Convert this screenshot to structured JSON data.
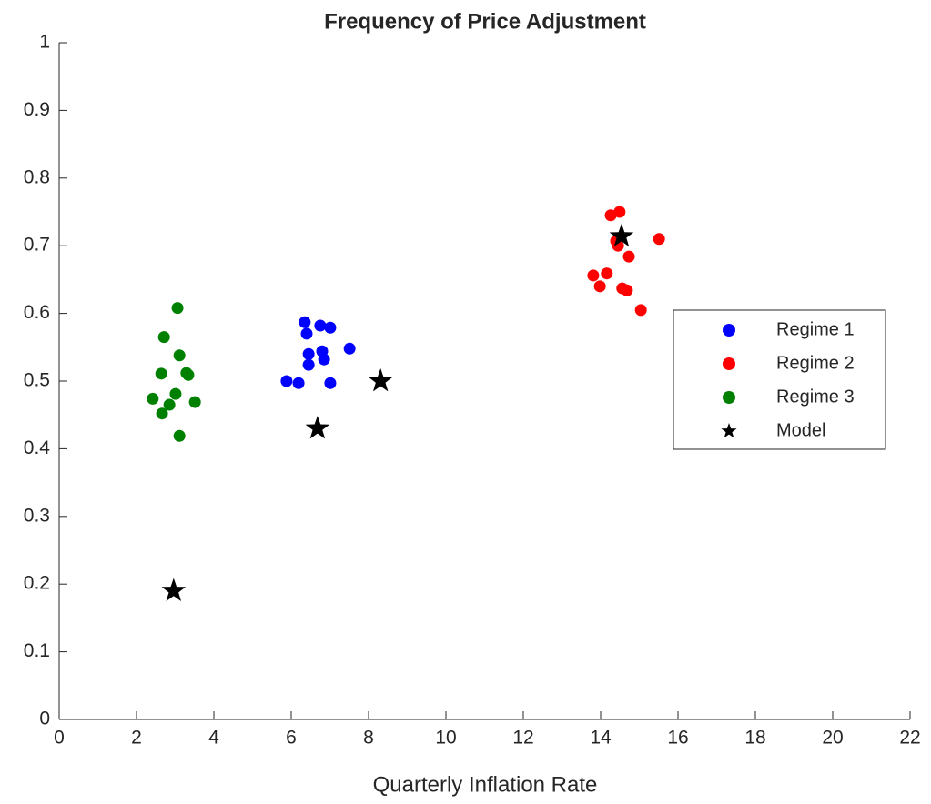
{
  "chart_data": {
    "type": "scatter",
    "title": "Frequency of Price Adjustment",
    "xlabel": "Quarterly Inflation Rate",
    "xlim": [
      0,
      22
    ],
    "xticks": [
      0,
      2,
      4,
      6,
      8,
      10,
      12,
      14,
      16,
      18,
      20,
      22
    ],
    "ylim": [
      0,
      1
    ],
    "yticks": [
      0,
      0.1,
      0.2,
      0.3,
      0.4,
      0.5,
      0.6,
      0.7,
      0.8,
      0.9,
      1
    ],
    "legend": "right",
    "series": [
      {
        "name": "Regime 1",
        "color": "#0000ff",
        "marker": "circle",
        "x": [
          6.35,
          6.4,
          6.75,
          7.01,
          7.51,
          6.45,
          6.8,
          6.45,
          6.85,
          5.88,
          6.19,
          7.01
        ],
        "values": [
          0.587,
          0.57,
          0.582,
          0.579,
          0.548,
          0.54,
          0.544,
          0.524,
          0.532,
          0.5,
          0.497,
          0.497
        ]
      },
      {
        "name": "Regime 2",
        "color": "#ff0000",
        "marker": "circle",
        "x": [
          14.49,
          14.26,
          15.51,
          14.4,
          14.45,
          14.73,
          13.81,
          14.16,
          13.98,
          14.56,
          14.68,
          15.04
        ],
        "values": [
          0.75,
          0.745,
          0.71,
          0.707,
          0.7,
          0.684,
          0.656,
          0.659,
          0.64,
          0.637,
          0.634,
          0.605
        ]
      },
      {
        "name": "Regime 3",
        "color": "#008000",
        "marker": "circle",
        "x": [
          3.06,
          2.71,
          3.11,
          2.64,
          3.29,
          3.34,
          3.01,
          2.42,
          2.85,
          3.51,
          2.66,
          3.11
        ],
        "values": [
          0.608,
          0.565,
          0.538,
          0.511,
          0.512,
          0.509,
          0.481,
          0.474,
          0.465,
          0.469,
          0.452,
          0.419
        ]
      },
      {
        "name": "Model",
        "color": "#000000",
        "marker": "star",
        "x": [
          2.96,
          6.68,
          8.31,
          14.54
        ],
        "values": [
          0.19,
          0.43,
          0.5,
          0.714
        ]
      }
    ]
  }
}
